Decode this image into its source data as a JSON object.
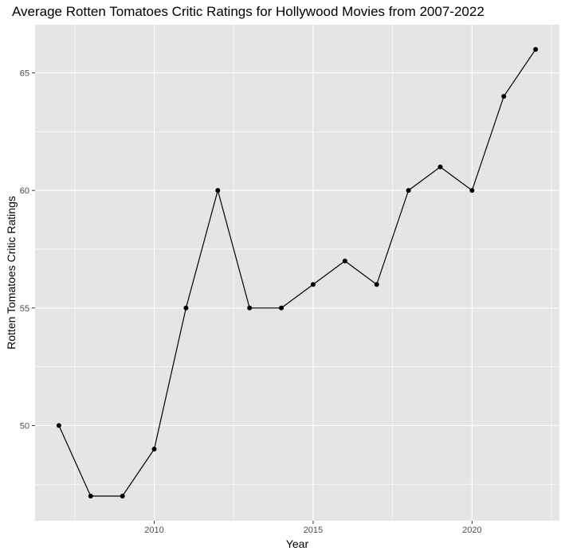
{
  "chart_data": {
    "type": "line",
    "title": "Average Rotten Tomatoes Critic Ratings for Hollywood Movies from 2007-2022",
    "xlabel": "Year",
    "ylabel": "Rotten Tomatoes Critic Ratings",
    "x": [
      2007,
      2008,
      2009,
      2010,
      2011,
      2012,
      2013,
      2014,
      2015,
      2016,
      2017,
      2018,
      2019,
      2020,
      2021,
      2022
    ],
    "values": [
      50,
      47,
      47,
      49,
      55,
      60,
      55,
      55,
      56,
      57,
      56,
      60,
      61,
      60,
      64,
      66
    ],
    "xlim": [
      2006.25,
      2022.75
    ],
    "ylim": [
      45.95,
      67.05
    ],
    "x_ticks": [
      2010,
      2015,
      2020
    ],
    "y_ticks": [
      50,
      55,
      60,
      65
    ],
    "x_tick_labels": [
      "2010",
      "2015",
      "2020"
    ],
    "y_tick_labels": [
      "50",
      "55",
      "60",
      "65"
    ],
    "grid": true,
    "legend": "none",
    "colors": {
      "panel_background": "#e5e5e5",
      "grid": "#ffffff",
      "line": "#000000",
      "point": "#000000",
      "tick_text": "#4d4d4d"
    }
  }
}
